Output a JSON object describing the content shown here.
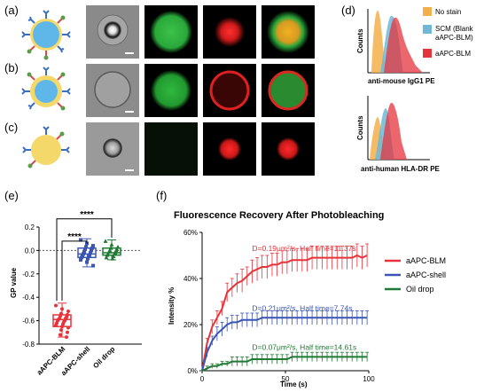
{
  "panels": {
    "a": "(a)",
    "b": "(b)",
    "c": "(c)",
    "d": "(d)",
    "e": "(e)",
    "f": "(f)"
  },
  "colors": {
    "red": "#e8323a",
    "blue": "#3b55b5",
    "green": "#1f7a33",
    "nostain": "#f3b04a",
    "scm": "#6fb8d8",
    "aapc": "#e4343c"
  },
  "flow": {
    "legend": [
      {
        "label": "No stain",
        "color": "#f3b04a"
      },
      {
        "label": "SCM (Blank",
        "label2": "aAPC-BLM)",
        "color": "#6fb8d8"
      },
      {
        "label": "aAPC-BLM",
        "color": "#e4343c"
      }
    ],
    "top_xlabel": "anti-mouse IgG1 PE",
    "bottom_xlabel": "anti-human HLA-DR PE",
    "ylabel": "Counts"
  },
  "chart_data": [
    {
      "type": "scatter",
      "panel": "e",
      "ylabel": "GP value",
      "categories": [
        "aAPC-BLM",
        "aAPC-shell",
        "Oil drop"
      ],
      "ylim": [
        -0.8,
        0.2
      ],
      "yticks": [
        "0.2",
        "0.0",
        "-0.2",
        "-0.4",
        "-0.6",
        "-0.8"
      ],
      "significance": [
        "****",
        "****"
      ],
      "series": [
        {
          "name": "aAPC-BLM",
          "color": "#e8323a",
          "values": [
            -0.47,
            -0.5,
            -0.52,
            -0.54,
            -0.55,
            -0.56,
            -0.57,
            -0.58,
            -0.58,
            -0.59,
            -0.6,
            -0.6,
            -0.61,
            -0.62,
            -0.63,
            -0.64,
            -0.65,
            -0.66,
            -0.68,
            -0.7,
            -0.72,
            -0.74
          ],
          "box": {
            "q1": -0.65,
            "median": -0.59,
            "q3": -0.55,
            "min": -0.74,
            "max": -0.45
          }
        },
        {
          "name": "aAPC-shell",
          "color": "#3b55b5",
          "values": [
            0.09,
            0.06,
            0.04,
            0.03,
            0.02,
            0.01,
            0.0,
            -0.01,
            -0.02,
            -0.03,
            -0.04,
            -0.05,
            -0.05,
            -0.06,
            -0.07,
            -0.08,
            -0.1,
            -0.13
          ],
          "box": {
            "q1": -0.06,
            "median": -0.03,
            "q3": 0.02,
            "min": -0.14,
            "max": 0.1
          }
        },
        {
          "name": "Oil drop",
          "color": "#1f7a33",
          "values": [
            0.08,
            0.05,
            0.03,
            0.02,
            0.01,
            0.0,
            0.0,
            -0.01,
            -0.02,
            -0.03,
            -0.03,
            -0.04,
            -0.05,
            -0.06,
            -0.07
          ],
          "box": {
            "q1": -0.04,
            "median": -0.02,
            "q3": 0.02,
            "min": -0.08,
            "max": 0.09
          }
        }
      ]
    },
    {
      "type": "line",
      "panel": "f",
      "title": "Fluorescence Recovery After Photobleaching",
      "xlabel": "Time (s)",
      "ylabel": "Intensity %",
      "xlim": [
        0,
        100
      ],
      "ylim": [
        0,
        60
      ],
      "xticks": [
        "0",
        "50",
        "100"
      ],
      "yticks": [
        "60%",
        "40%",
        "20%",
        "0%"
      ],
      "series": [
        {
          "name": "aAPC-BLM",
          "color": "#e8323a",
          "annotation": "D=0.19μm²/s, Half time=11.37s",
          "x": [
            0,
            3,
            6,
            9,
            12,
            15,
            18,
            21,
            24,
            27,
            30,
            33,
            36,
            39,
            42,
            45,
            48,
            51,
            54,
            57,
            60,
            63,
            66,
            69,
            72,
            75,
            78,
            81,
            84,
            87,
            90,
            93,
            96,
            99
          ],
          "y": [
            0,
            12,
            19,
            23,
            27,
            34,
            36,
            38,
            39,
            41,
            43,
            44,
            45,
            45,
            46,
            46,
            47,
            47,
            48,
            48,
            48,
            48,
            49,
            49,
            49,
            49,
            49,
            49,
            49,
            49,
            49,
            50,
            49,
            50
          ],
          "err": [
            0,
            2,
            3,
            3,
            3,
            4,
            4,
            4,
            5,
            4,
            5,
            5,
            5,
            5,
            5,
            5,
            5,
            5,
            5,
            5,
            5,
            5,
            5,
            5,
            5,
            5,
            5,
            5,
            5,
            5,
            5,
            5,
            5,
            5
          ]
        },
        {
          "name": "aAPC-shell",
          "color": "#3b55b5",
          "annotation": "D=0.21μm²/s, Half time=7.74s",
          "x": [
            0,
            3,
            6,
            9,
            12,
            15,
            18,
            21,
            24,
            27,
            30,
            33,
            36,
            39,
            42,
            45,
            48,
            51,
            54,
            57,
            60,
            63,
            66,
            69,
            72,
            75,
            78,
            81,
            84,
            87,
            90,
            93,
            96,
            99
          ],
          "y": [
            0,
            8,
            13,
            16,
            18,
            20,
            21,
            21,
            22,
            22,
            22,
            22,
            23,
            23,
            23,
            23,
            23,
            23,
            23,
            23,
            23,
            23,
            23,
            23,
            23,
            23,
            23,
            23,
            23,
            23,
            23,
            23,
            23,
            23
          ],
          "err": [
            0,
            2,
            2,
            3,
            3,
            3,
            3,
            3,
            3,
            3,
            3,
            3,
            3,
            3,
            3,
            3,
            3,
            3,
            3,
            3,
            3,
            3,
            3,
            3,
            3,
            3,
            3,
            3,
            3,
            3,
            3,
            3,
            3,
            3
          ]
        },
        {
          "name": "Oil drop",
          "color": "#1f7a33",
          "annotation": "D=0.07μm²/s, Half time=14.61s",
          "x": [
            0,
            3,
            6,
            9,
            12,
            15,
            18,
            21,
            24,
            27,
            30,
            33,
            36,
            39,
            42,
            45,
            48,
            51,
            54,
            57,
            60,
            63,
            66,
            69,
            72,
            75,
            78,
            81,
            84,
            87,
            90,
            93,
            96,
            99
          ],
          "y": [
            0,
            1,
            2,
            2,
            3,
            3,
            4,
            4,
            4,
            4,
            5,
            5,
            5,
            5,
            5,
            5,
            5,
            5,
            6,
            6,
            6,
            6,
            6,
            6,
            6,
            6,
            6,
            6,
            6,
            6,
            6,
            6,
            6,
            6
          ],
          "err": [
            0,
            1,
            1,
            1,
            1,
            1,
            2,
            2,
            2,
            2,
            2,
            2,
            2,
            2,
            2,
            2,
            2,
            2,
            2,
            2,
            2,
            2,
            2,
            2,
            2,
            2,
            2,
            2,
            2,
            2,
            2,
            2,
            2,
            2
          ]
        }
      ]
    }
  ]
}
